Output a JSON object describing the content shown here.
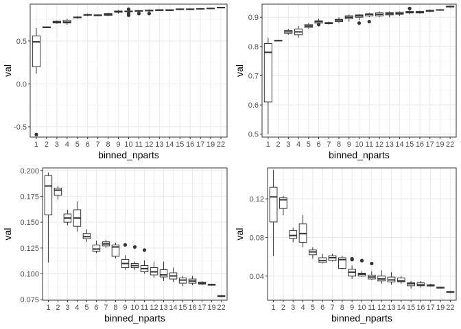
{
  "colors": {
    "grid_major": "#ebebeb",
    "grid_minor": "#f4f4f4",
    "panel_border": "#333333",
    "box_fill": "#ffffff",
    "box_line": "#333333",
    "tick_text": "#4d4d4d"
  },
  "chart_data": [
    {
      "type": "boxplot",
      "xlabel": "binned_nparts",
      "ylabel": "val",
      "categories": [
        "1",
        "2",
        "3",
        "4",
        "5",
        "6",
        "7",
        "8",
        "9",
        "10",
        "11",
        "12",
        "13",
        "14",
        "15",
        "16",
        "17",
        "19",
        "22"
      ],
      "ylim": [
        -0.62,
        0.93
      ],
      "yticks": [
        -0.5,
        0.0,
        0.5
      ],
      "ytick_labels": [
        "-0.5",
        "0.0",
        "0.5"
      ],
      "grid": true,
      "boxes": [
        {
          "min": 0.12,
          "q1": 0.2,
          "median": 0.49,
          "q3": 0.56,
          "max": 0.65,
          "outliers": [
            -0.59
          ]
        },
        {
          "min": 0.65,
          "q1": 0.655,
          "median": 0.66,
          "q3": 0.665,
          "max": 0.67,
          "outliers": []
        },
        {
          "min": 0.7,
          "q1": 0.71,
          "median": 0.72,
          "q3": 0.73,
          "max": 0.74,
          "outliers": []
        },
        {
          "min": 0.69,
          "q1": 0.71,
          "median": 0.72,
          "q3": 0.74,
          "max": 0.76,
          "outliers": []
        },
        {
          "min": 0.76,
          "q1": 0.77,
          "median": 0.775,
          "q3": 0.78,
          "max": 0.79,
          "outliers": []
        },
        {
          "min": 0.79,
          "q1": 0.8,
          "median": 0.805,
          "q3": 0.81,
          "max": 0.82,
          "outliers": []
        },
        {
          "min": 0.79,
          "q1": 0.795,
          "median": 0.8,
          "q3": 0.805,
          "max": 0.81,
          "outliers": []
        },
        {
          "min": 0.79,
          "q1": 0.8,
          "median": 0.81,
          "q3": 0.82,
          "max": 0.83,
          "outliers": []
        },
        {
          "min": 0.82,
          "q1": 0.835,
          "median": 0.84,
          "q3": 0.85,
          "max": 0.86,
          "outliers": []
        },
        {
          "min": 0.83,
          "q1": 0.84,
          "median": 0.845,
          "q3": 0.85,
          "max": 0.86,
          "outliers": [
            0.8,
            0.82,
            0.87
          ]
        },
        {
          "min": 0.84,
          "q1": 0.845,
          "median": 0.85,
          "q3": 0.855,
          "max": 0.86,
          "outliers": [
            0.82
          ]
        },
        {
          "min": 0.84,
          "q1": 0.85,
          "median": 0.855,
          "q3": 0.86,
          "max": 0.87,
          "outliers": [
            0.82
          ]
        },
        {
          "min": 0.85,
          "q1": 0.855,
          "median": 0.86,
          "q3": 0.865,
          "max": 0.87,
          "outliers": []
        },
        {
          "min": 0.85,
          "q1": 0.855,
          "median": 0.86,
          "q3": 0.865,
          "max": 0.87,
          "outliers": []
        },
        {
          "min": 0.86,
          "q1": 0.865,
          "median": 0.87,
          "q3": 0.875,
          "max": 0.88,
          "outliers": []
        },
        {
          "min": 0.86,
          "q1": 0.865,
          "median": 0.87,
          "q3": 0.875,
          "max": 0.88,
          "outliers": []
        },
        {
          "min": 0.87,
          "q1": 0.872,
          "median": 0.875,
          "q3": 0.878,
          "max": 0.88,
          "outliers": []
        },
        {
          "min": 0.875,
          "q1": 0.878,
          "median": 0.88,
          "q3": 0.882,
          "max": 0.885,
          "outliers": []
        },
        {
          "min": 0.88,
          "q1": 0.885,
          "median": 0.89,
          "q3": 0.892,
          "max": 0.895,
          "outliers": []
        }
      ]
    },
    {
      "type": "boxplot",
      "xlabel": "binned_nparts",
      "ylabel": "val",
      "categories": [
        "1",
        "2",
        "3",
        "4",
        "5",
        "6",
        "7",
        "8",
        "9",
        "10",
        "11",
        "12",
        "13",
        "14",
        "15",
        "16",
        "17",
        "19",
        "22"
      ],
      "ylim": [
        0.49,
        0.945
      ],
      "yticks": [
        0.5,
        0.6,
        0.7,
        0.8,
        0.9
      ],
      "ytick_labels": [
        "0.5",
        "0.6",
        "0.7",
        "0.8",
        "0.9"
      ],
      "grid": true,
      "boxes": [
        {
          "min": 0.5,
          "q1": 0.61,
          "median": 0.78,
          "q3": 0.81,
          "max": 0.83,
          "outliers": []
        },
        {
          "min": 0.818,
          "q1": 0.819,
          "median": 0.82,
          "q3": 0.821,
          "max": 0.822,
          "outliers": []
        },
        {
          "min": 0.84,
          "q1": 0.845,
          "median": 0.85,
          "q3": 0.855,
          "max": 0.86,
          "outliers": []
        },
        {
          "min": 0.83,
          "q1": 0.84,
          "median": 0.85,
          "q3": 0.86,
          "max": 0.87,
          "outliers": []
        },
        {
          "min": 0.86,
          "q1": 0.865,
          "median": 0.87,
          "q3": 0.875,
          "max": 0.88,
          "outliers": []
        },
        {
          "min": 0.87,
          "q1": 0.88,
          "median": 0.885,
          "q3": 0.888,
          "max": 0.895,
          "outliers": [
            0.875
          ]
        },
        {
          "min": 0.875,
          "q1": 0.878,
          "median": 0.88,
          "q3": 0.882,
          "max": 0.885,
          "outliers": []
        },
        {
          "min": 0.88,
          "q1": 0.885,
          "median": 0.89,
          "q3": 0.893,
          "max": 0.9,
          "outliers": []
        },
        {
          "min": 0.885,
          "q1": 0.895,
          "median": 0.9,
          "q3": 0.905,
          "max": 0.91,
          "outliers": []
        },
        {
          "min": 0.89,
          "q1": 0.9,
          "median": 0.905,
          "q3": 0.908,
          "max": 0.91,
          "outliers": [
            0.88
          ]
        },
        {
          "min": 0.9,
          "q1": 0.905,
          "median": 0.91,
          "q3": 0.912,
          "max": 0.915,
          "outliers": [
            0.885
          ]
        },
        {
          "min": 0.9,
          "q1": 0.905,
          "median": 0.91,
          "q3": 0.915,
          "max": 0.92,
          "outliers": []
        },
        {
          "min": 0.9,
          "q1": 0.908,
          "median": 0.912,
          "q3": 0.916,
          "max": 0.92,
          "outliers": []
        },
        {
          "min": 0.905,
          "q1": 0.91,
          "median": 0.913,
          "q3": 0.917,
          "max": 0.92,
          "outliers": []
        },
        {
          "min": 0.91,
          "q1": 0.915,
          "median": 0.918,
          "q3": 0.92,
          "max": 0.925,
          "outliers": [
            0.93
          ]
        },
        {
          "min": 0.912,
          "q1": 0.915,
          "median": 0.918,
          "q3": 0.92,
          "max": 0.923,
          "outliers": []
        },
        {
          "min": 0.918,
          "q1": 0.92,
          "median": 0.922,
          "q3": 0.924,
          "max": 0.926,
          "outliers": []
        },
        {
          "min": 0.922,
          "q1": 0.924,
          "median": 0.925,
          "q3": 0.926,
          "max": 0.928,
          "outliers": []
        },
        {
          "min": 0.933,
          "q1": 0.935,
          "median": 0.937,
          "q3": 0.938,
          "max": 0.94,
          "outliers": []
        }
      ]
    },
    {
      "type": "boxplot",
      "xlabel": "binned_nparts",
      "ylabel": "val",
      "categories": [
        "1",
        "2",
        "3",
        "4",
        "5",
        "6",
        "7",
        "8",
        "9",
        "10",
        "11",
        "12",
        "13",
        "14",
        "15",
        "16",
        "17",
        "19",
        "22"
      ],
      "ylim": [
        0.0745,
        0.2025
      ],
      "yticks": [
        0.075,
        0.1,
        0.125,
        0.15,
        0.175,
        0.2
      ],
      "ytick_labels": [
        "0.075",
        "0.100",
        "0.125",
        "0.150",
        "0.175",
        "0.200"
      ],
      "grid": true,
      "boxes": [
        {
          "min": 0.111,
          "q1": 0.157,
          "median": 0.185,
          "q3": 0.195,
          "max": 0.198,
          "outliers": []
        },
        {
          "min": 0.172,
          "q1": 0.176,
          "median": 0.181,
          "q3": 0.183,
          "max": 0.185,
          "outliers": []
        },
        {
          "min": 0.147,
          "q1": 0.15,
          "median": 0.154,
          "q3": 0.158,
          "max": 0.162,
          "outliers": []
        },
        {
          "min": 0.141,
          "q1": 0.146,
          "median": 0.154,
          "q3": 0.162,
          "max": 0.17,
          "outliers": []
        },
        {
          "min": 0.131,
          "q1": 0.134,
          "median": 0.136,
          "q3": 0.139,
          "max": 0.143,
          "outliers": []
        },
        {
          "min": 0.12,
          "q1": 0.122,
          "median": 0.124,
          "q3": 0.128,
          "max": 0.132,
          "outliers": []
        },
        {
          "min": 0.125,
          "q1": 0.127,
          "median": 0.129,
          "q3": 0.131,
          "max": 0.133,
          "outliers": []
        },
        {
          "min": 0.115,
          "q1": 0.117,
          "median": 0.126,
          "q3": 0.128,
          "max": 0.13,
          "outliers": []
        },
        {
          "min": 0.104,
          "q1": 0.106,
          "median": 0.11,
          "q3": 0.114,
          "max": 0.118,
          "outliers": [
            0.128
          ]
        },
        {
          "min": 0.104,
          "q1": 0.106,
          "median": 0.108,
          "q3": 0.11,
          "max": 0.112,
          "outliers": [
            0.126
          ]
        },
        {
          "min": 0.1,
          "q1": 0.102,
          "median": 0.105,
          "q3": 0.108,
          "max": 0.113,
          "outliers": [
            0.123
          ]
        },
        {
          "min": 0.096,
          "q1": 0.099,
          "median": 0.102,
          "q3": 0.106,
          "max": 0.112,
          "outliers": []
        },
        {
          "min": 0.093,
          "q1": 0.097,
          "median": 0.099,
          "q3": 0.104,
          "max": 0.112,
          "outliers": []
        },
        {
          "min": 0.092,
          "q1": 0.095,
          "median": 0.098,
          "q3": 0.101,
          "max": 0.106,
          "outliers": []
        },
        {
          "min": 0.088,
          "q1": 0.091,
          "median": 0.094,
          "q3": 0.096,
          "max": 0.098,
          "outliers": []
        },
        {
          "min": 0.089,
          "q1": 0.091,
          "median": 0.093,
          "q3": 0.095,
          "max": 0.098,
          "outliers": []
        },
        {
          "min": 0.089,
          "q1": 0.09,
          "median": 0.091,
          "q3": 0.092,
          "max": 0.093,
          "outliers": []
        },
        {
          "min": 0.0885,
          "q1": 0.089,
          "median": 0.0895,
          "q3": 0.09,
          "max": 0.0905,
          "outliers": []
        },
        {
          "min": 0.0775,
          "q1": 0.078,
          "median": 0.0785,
          "q3": 0.079,
          "max": 0.0795,
          "outliers": []
        }
      ]
    },
    {
      "type": "boxplot",
      "xlabel": "binned_nparts",
      "ylabel": "val",
      "categories": [
        "1",
        "2",
        "3",
        "4",
        "5",
        "6",
        "7",
        "8",
        "9",
        "10",
        "11",
        "12",
        "13",
        "14",
        "15",
        "16",
        "17",
        "19",
        "22"
      ],
      "ylim": [
        0.015,
        0.152
      ],
      "yticks": [
        0.04,
        0.08,
        0.12
      ],
      "ytick_labels": [
        "0.04",
        "0.08",
        "0.12"
      ],
      "grid": true,
      "boxes": [
        {
          "min": 0.061,
          "q1": 0.096,
          "median": 0.122,
          "q3": 0.132,
          "max": 0.15,
          "outliers": []
        },
        {
          "min": 0.103,
          "q1": 0.11,
          "median": 0.119,
          "q3": 0.121,
          "max": 0.123,
          "outliers": []
        },
        {
          "min": 0.075,
          "q1": 0.079,
          "median": 0.082,
          "q3": 0.087,
          "max": 0.09,
          "outliers": []
        },
        {
          "min": 0.07,
          "q1": 0.075,
          "median": 0.084,
          "q3": 0.094,
          "max": 0.103,
          "outliers": []
        },
        {
          "min": 0.058,
          "q1": 0.062,
          "median": 0.065,
          "q3": 0.067,
          "max": 0.07,
          "outliers": []
        },
        {
          "min": 0.053,
          "q1": 0.054,
          "median": 0.056,
          "q3": 0.059,
          "max": 0.063,
          "outliers": []
        },
        {
          "min": 0.055,
          "q1": 0.056,
          "median": 0.059,
          "q3": 0.061,
          "max": 0.063,
          "outliers": []
        },
        {
          "min": 0.047,
          "q1": 0.048,
          "median": 0.057,
          "q3": 0.059,
          "max": 0.061,
          "outliers": []
        },
        {
          "min": 0.037,
          "q1": 0.04,
          "median": 0.044,
          "q3": 0.047,
          "max": 0.051,
          "outliers": [
            0.057,
            0.058
          ]
        },
        {
          "min": 0.039,
          "q1": 0.04,
          "median": 0.042,
          "q3": 0.043,
          "max": 0.045,
          "outliers": [
            0.056
          ]
        },
        {
          "min": 0.036,
          "q1": 0.037,
          "median": 0.039,
          "q3": 0.041,
          "max": 0.045,
          "outliers": [
            0.053
          ]
        },
        {
          "min": 0.032,
          "q1": 0.035,
          "median": 0.037,
          "q3": 0.04,
          "max": 0.046,
          "outliers": []
        },
        {
          "min": 0.031,
          "q1": 0.034,
          "median": 0.036,
          "q3": 0.039,
          "max": 0.044,
          "outliers": []
        },
        {
          "min": 0.032,
          "q1": 0.034,
          "median": 0.035,
          "q3": 0.038,
          "max": 0.04,
          "outliers": []
        },
        {
          "min": 0.027,
          "q1": 0.03,
          "median": 0.032,
          "q3": 0.033,
          "max": 0.035,
          "outliers": []
        },
        {
          "min": 0.028,
          "q1": 0.03,
          "median": 0.031,
          "q3": 0.033,
          "max": 0.035,
          "outliers": []
        },
        {
          "min": 0.029,
          "q1": 0.03,
          "median": 0.03,
          "q3": 0.031,
          "max": 0.032,
          "outliers": []
        },
        {
          "min": 0.027,
          "q1": 0.0275,
          "median": 0.028,
          "q3": 0.0285,
          "max": 0.029,
          "outliers": []
        },
        {
          "min": 0.0225,
          "q1": 0.023,
          "median": 0.0235,
          "q3": 0.024,
          "max": 0.0245,
          "outliers": []
        }
      ]
    }
  ]
}
